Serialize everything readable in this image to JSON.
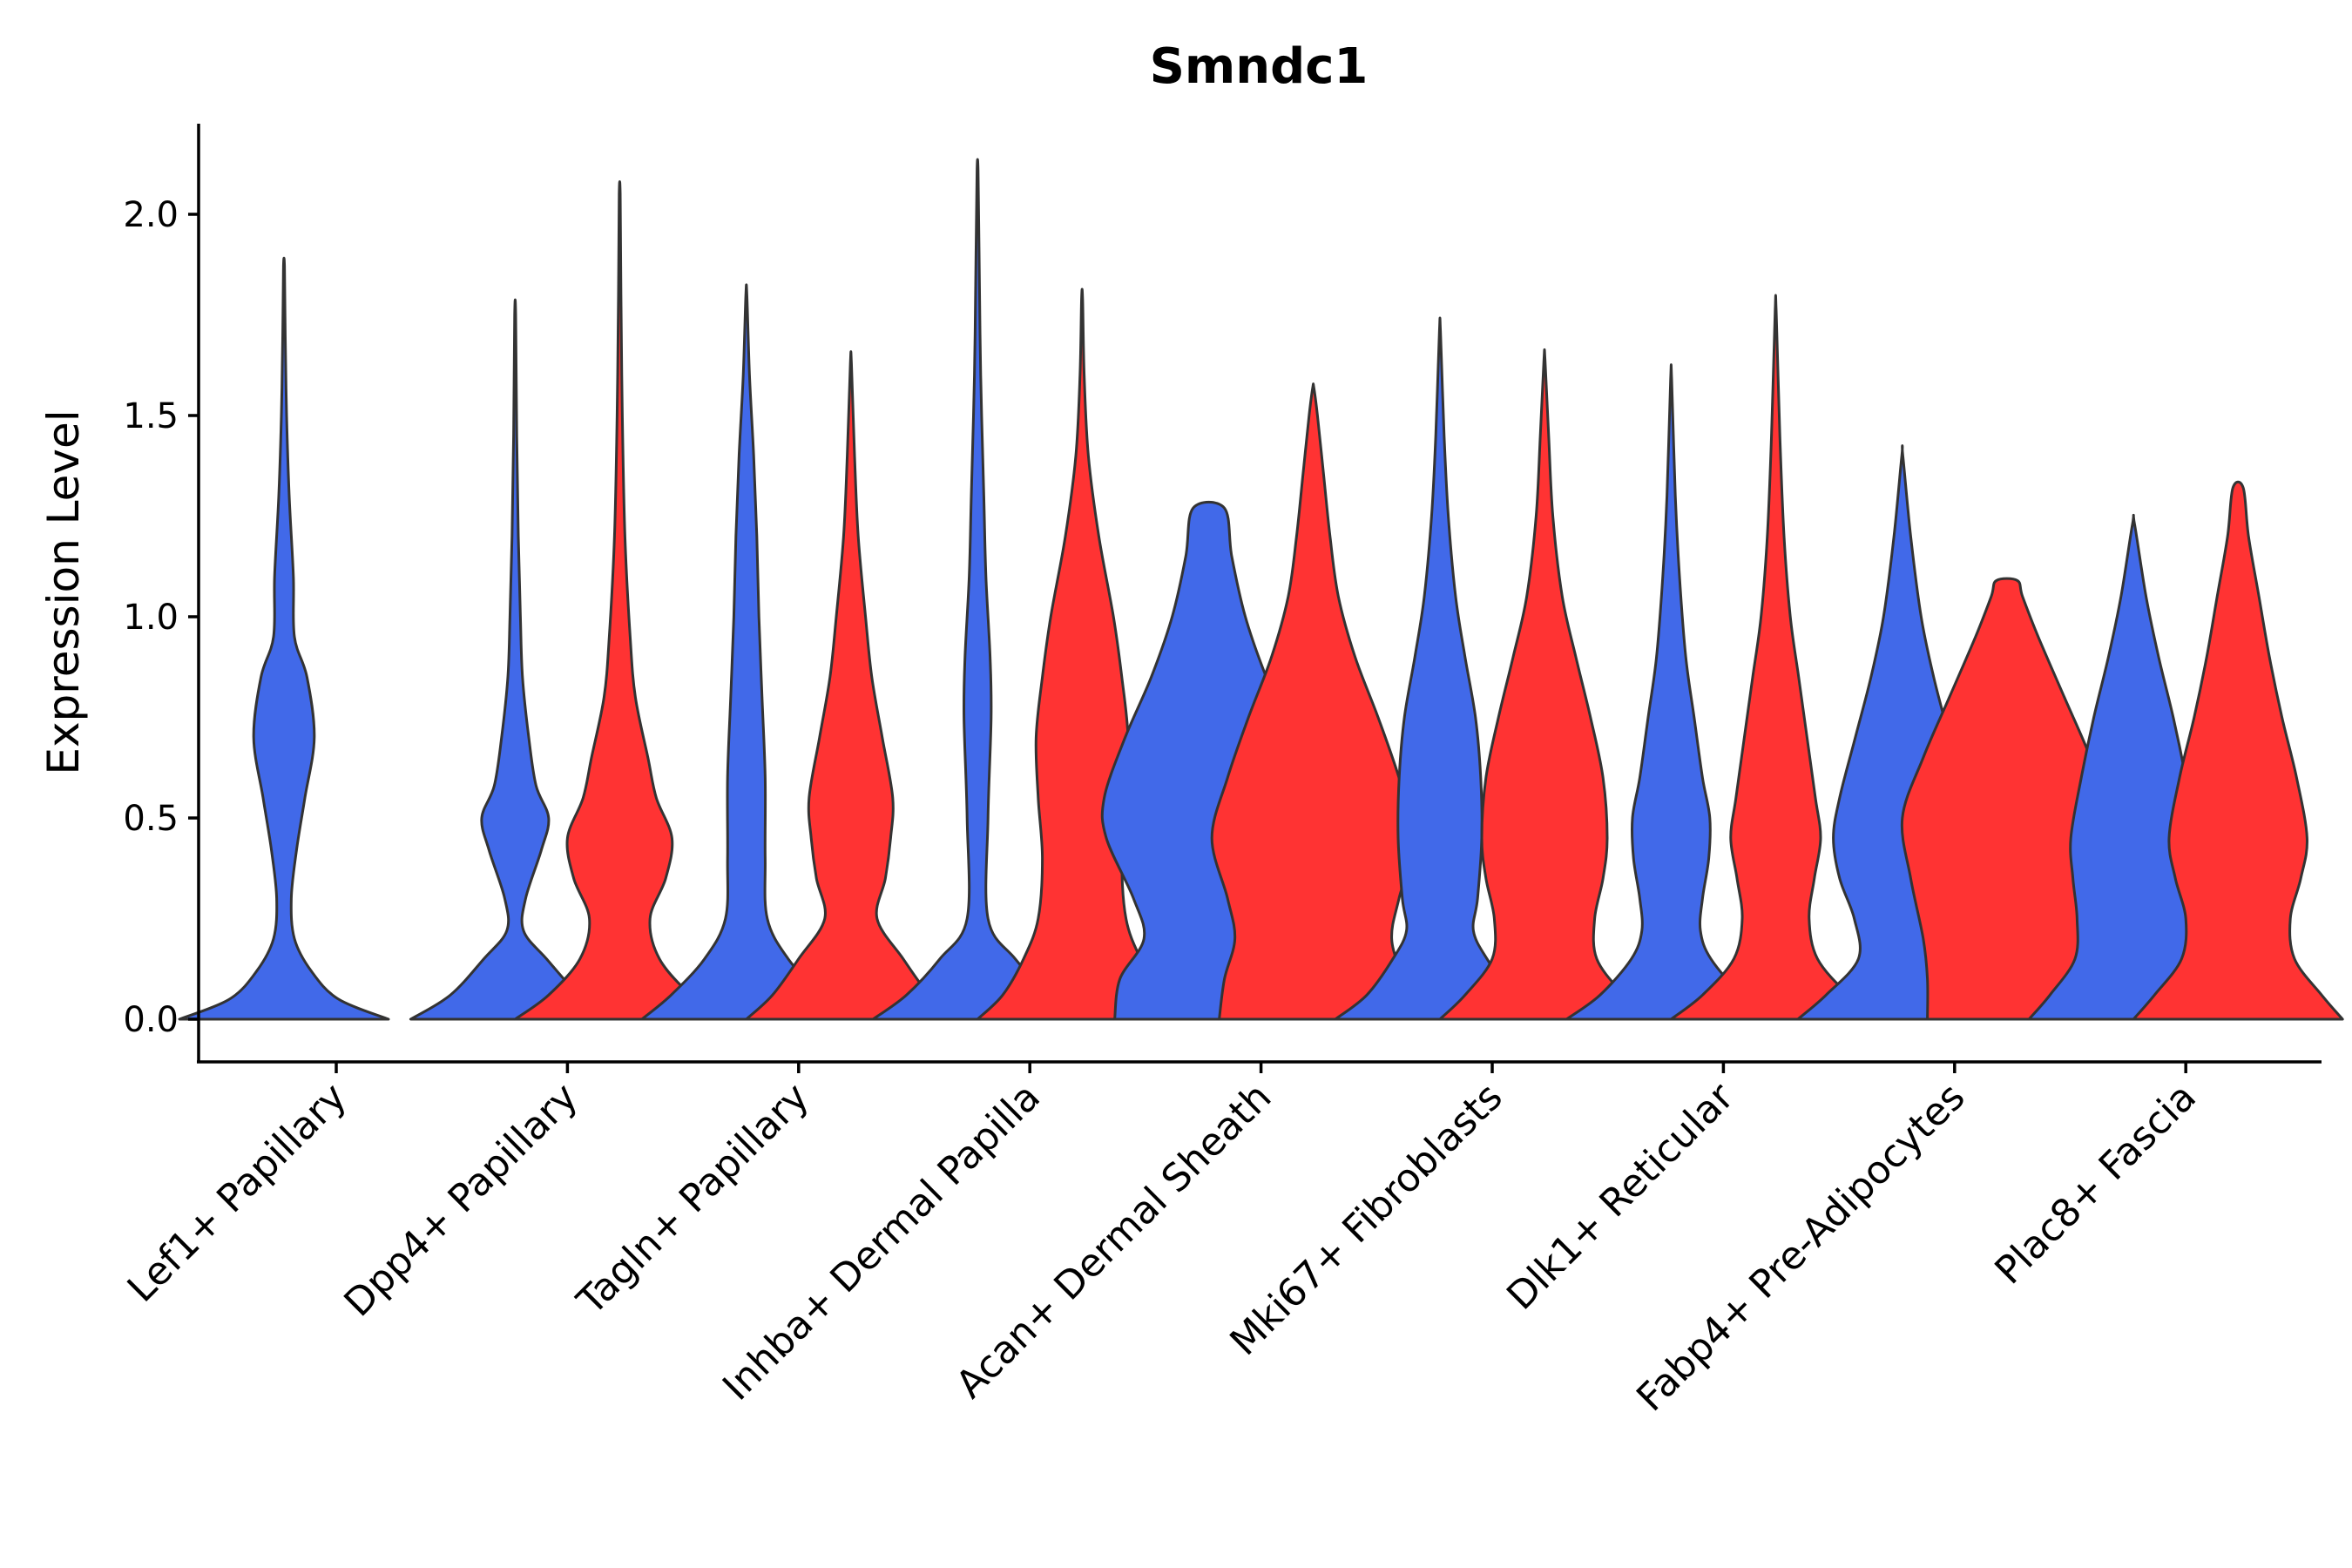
{
  "chart_data": {
    "type": "violin",
    "title": "Smndc1",
    "ylabel": "Expression Level",
    "xlabel": "",
    "ylim": [
      -0.1,
      2.2
    ],
    "yticks": [
      0.0,
      0.5,
      1.0,
      1.5,
      2.0
    ],
    "ytick_labels": [
      "0.0",
      "0.5",
      "1.0",
      "1.5",
      "2.0"
    ],
    "colors": {
      "blue": "#4169E9",
      "red": "#FF3333",
      "outline": "#333333"
    },
    "categories": [
      "Lef1+ Papillary",
      "Dpp4+ Papillary",
      "Tagln+ Papillary",
      "Inhba+ Dermal Papilla",
      "Acan+ Dermal Sheath",
      "Mki67+ Fibroblasts",
      "Dlk1+ Reticular",
      "Fabp4+ Pre-Adipocytes",
      "Plac8+ Fascia"
    ],
    "violins": [
      {
        "category": 0,
        "series": "blue",
        "max": 1.87,
        "profile": [
          [
            0,
            1
          ],
          [
            0.05,
            0.52
          ],
          [
            0.12,
            0.26
          ],
          [
            0.2,
            0.1
          ],
          [
            0.3,
            0.07
          ],
          [
            0.42,
            0.12
          ],
          [
            0.55,
            0.2
          ],
          [
            0.7,
            0.29
          ],
          [
            0.85,
            0.22
          ],
          [
            0.95,
            0.1
          ],
          [
            1.1,
            0.09
          ],
          [
            1.3,
            0.05
          ],
          [
            1.5,
            0.025
          ],
          [
            1.7,
            0.012
          ],
          [
            1.87,
            0.005
          ]
        ]
      },
      {
        "category": 1,
        "series": "blue",
        "max": 1.75,
        "profile": [
          [
            0,
            1
          ],
          [
            0.06,
            0.62
          ],
          [
            0.15,
            0.3
          ],
          [
            0.22,
            0.08
          ],
          [
            0.3,
            0.1
          ],
          [
            0.42,
            0.25
          ],
          [
            0.5,
            0.32
          ],
          [
            0.58,
            0.2
          ],
          [
            0.7,
            0.13
          ],
          [
            0.85,
            0.07
          ],
          [
            1.0,
            0.05
          ],
          [
            1.2,
            0.03
          ],
          [
            1.45,
            0.015
          ],
          [
            1.75,
            0.005
          ]
        ]
      },
      {
        "category": 1,
        "series": "red",
        "max": 2.05,
        "profile": [
          [
            0,
            1
          ],
          [
            0.06,
            0.68
          ],
          [
            0.15,
            0.38
          ],
          [
            0.25,
            0.29
          ],
          [
            0.35,
            0.44
          ],
          [
            0.45,
            0.5
          ],
          [
            0.55,
            0.35
          ],
          [
            0.65,
            0.27
          ],
          [
            0.8,
            0.15
          ],
          [
            0.95,
            0.1
          ],
          [
            1.2,
            0.05
          ],
          [
            1.5,
            0.025
          ],
          [
            1.8,
            0.012
          ],
          [
            2.05,
            0.005
          ]
        ]
      },
      {
        "category": 2,
        "series": "blue",
        "max": 1.8,
        "profile": [
          [
            0,
            1
          ],
          [
            0.06,
            0.72
          ],
          [
            0.15,
            0.4
          ],
          [
            0.25,
            0.2
          ],
          [
            0.4,
            0.18
          ],
          [
            0.6,
            0.18
          ],
          [
            0.8,
            0.15
          ],
          [
            1.0,
            0.12
          ],
          [
            1.2,
            0.1
          ],
          [
            1.4,
            0.07
          ],
          [
            1.6,
            0.03
          ],
          [
            1.8,
            0.005
          ]
        ]
      },
      {
        "category": 2,
        "series": "red",
        "max": 1.63,
        "profile": [
          [
            0,
            1
          ],
          [
            0.06,
            0.75
          ],
          [
            0.15,
            0.5
          ],
          [
            0.25,
            0.25
          ],
          [
            0.35,
            0.33
          ],
          [
            0.45,
            0.38
          ],
          [
            0.55,
            0.4
          ],
          [
            0.7,
            0.3
          ],
          [
            0.85,
            0.2
          ],
          [
            1.0,
            0.14
          ],
          [
            1.2,
            0.07
          ],
          [
            1.4,
            0.035
          ],
          [
            1.63,
            0.005
          ]
        ]
      },
      {
        "category": 3,
        "series": "blue",
        "max": 2.11,
        "profile": [
          [
            0,
            1
          ],
          [
            0.06,
            0.68
          ],
          [
            0.15,
            0.36
          ],
          [
            0.25,
            0.1
          ],
          [
            0.5,
            0.1
          ],
          [
            0.75,
            0.13
          ],
          [
            0.9,
            0.12
          ],
          [
            1.1,
            0.08
          ],
          [
            1.3,
            0.06
          ],
          [
            1.6,
            0.03
          ],
          [
            1.9,
            0.015
          ],
          [
            2.11,
            0.005
          ]
        ]
      },
      {
        "category": 3,
        "series": "red",
        "max": 1.79,
        "profile": [
          [
            0,
            1
          ],
          [
            0.06,
            0.76
          ],
          [
            0.15,
            0.56
          ],
          [
            0.25,
            0.42
          ],
          [
            0.4,
            0.38
          ],
          [
            0.55,
            0.42
          ],
          [
            0.7,
            0.44
          ],
          [
            0.85,
            0.38
          ],
          [
            1.0,
            0.3
          ],
          [
            1.2,
            0.16
          ],
          [
            1.4,
            0.06
          ],
          [
            1.6,
            0.02
          ],
          [
            1.79,
            0.005
          ]
        ]
      },
      {
        "category": 4,
        "series": "blue",
        "max": 1.27,
        "profile": [
          [
            0,
            0.9
          ],
          [
            0.1,
            0.85
          ],
          [
            0.2,
            0.62
          ],
          [
            0.3,
            0.72
          ],
          [
            0.45,
            0.98
          ],
          [
            0.55,
            1.0
          ],
          [
            0.7,
            0.8
          ],
          [
            0.85,
            0.55
          ],
          [
            1.0,
            0.35
          ],
          [
            1.15,
            0.22
          ],
          [
            1.27,
            0.15
          ]
        ]
      },
      {
        "category": 4,
        "series": "red",
        "max": 1.57,
        "profile": [
          [
            0,
            0.9
          ],
          [
            0.1,
            0.85
          ],
          [
            0.2,
            0.75
          ],
          [
            0.3,
            0.82
          ],
          [
            0.45,
            0.97
          ],
          [
            0.6,
            0.82
          ],
          [
            0.75,
            0.62
          ],
          [
            0.9,
            0.4
          ],
          [
            1.05,
            0.24
          ],
          [
            1.2,
            0.16
          ],
          [
            1.35,
            0.1
          ],
          [
            1.5,
            0.04
          ],
          [
            1.57,
            0.005
          ]
        ]
      },
      {
        "category": 5,
        "series": "blue",
        "max": 1.71,
        "profile": [
          [
            0,
            1
          ],
          [
            0.06,
            0.7
          ],
          [
            0.15,
            0.45
          ],
          [
            0.22,
            0.32
          ],
          [
            0.3,
            0.36
          ],
          [
            0.45,
            0.4
          ],
          [
            0.6,
            0.39
          ],
          [
            0.75,
            0.34
          ],
          [
            0.9,
            0.24
          ],
          [
            1.05,
            0.15
          ],
          [
            1.25,
            0.08
          ],
          [
            1.45,
            0.04
          ],
          [
            1.71,
            0.005
          ]
        ]
      },
      {
        "category": 5,
        "series": "red",
        "max": 1.64,
        "profile": [
          [
            0,
            1
          ],
          [
            0.06,
            0.76
          ],
          [
            0.15,
            0.5
          ],
          [
            0.25,
            0.48
          ],
          [
            0.35,
            0.56
          ],
          [
            0.45,
            0.6
          ],
          [
            0.6,
            0.56
          ],
          [
            0.75,
            0.44
          ],
          [
            0.9,
            0.3
          ],
          [
            1.05,
            0.17
          ],
          [
            1.25,
            0.08
          ],
          [
            1.45,
            0.04
          ],
          [
            1.64,
            0.005
          ]
        ]
      },
      {
        "category": 6,
        "series": "blue",
        "max": 1.59,
        "profile": [
          [
            0,
            1
          ],
          [
            0.06,
            0.68
          ],
          [
            0.15,
            0.38
          ],
          [
            0.22,
            0.28
          ],
          [
            0.3,
            0.3
          ],
          [
            0.4,
            0.36
          ],
          [
            0.5,
            0.37
          ],
          [
            0.6,
            0.3
          ],
          [
            0.75,
            0.22
          ],
          [
            0.9,
            0.14
          ],
          [
            1.1,
            0.08
          ],
          [
            1.3,
            0.04
          ],
          [
            1.59,
            0.005
          ]
        ]
      },
      {
        "category": 6,
        "series": "red",
        "max": 1.76,
        "profile": [
          [
            0,
            1
          ],
          [
            0.06,
            0.7
          ],
          [
            0.15,
            0.4
          ],
          [
            0.25,
            0.32
          ],
          [
            0.35,
            0.37
          ],
          [
            0.45,
            0.43
          ],
          [
            0.55,
            0.38
          ],
          [
            0.7,
            0.3
          ],
          [
            0.85,
            0.22
          ],
          [
            1.0,
            0.14
          ],
          [
            1.2,
            0.08
          ],
          [
            1.45,
            0.04
          ],
          [
            1.76,
            0.005
          ]
        ]
      },
      {
        "category": 7,
        "series": "blue",
        "max": 1.4,
        "profile": [
          [
            0,
            1
          ],
          [
            0.06,
            0.73
          ],
          [
            0.15,
            0.42
          ],
          [
            0.25,
            0.46
          ],
          [
            0.35,
            0.6
          ],
          [
            0.45,
            0.66
          ],
          [
            0.55,
            0.6
          ],
          [
            0.7,
            0.45
          ],
          [
            0.85,
            0.3
          ],
          [
            1.0,
            0.18
          ],
          [
            1.2,
            0.08
          ],
          [
            1.4,
            0.005
          ]
        ]
      },
      {
        "category": 7,
        "series": "red",
        "max": 1.09,
        "profile": [
          [
            0,
            0.76
          ],
          [
            0.1,
            0.76
          ],
          [
            0.2,
            0.8
          ],
          [
            0.35,
            0.92
          ],
          [
            0.5,
            1.0
          ],
          [
            0.65,
            0.8
          ],
          [
            0.8,
            0.55
          ],
          [
            0.95,
            0.3
          ],
          [
            1.05,
            0.15
          ],
          [
            1.09,
            0.1
          ]
        ]
      },
      {
        "category": 8,
        "series": "blue",
        "max": 1.23,
        "profile": [
          [
            0,
            1
          ],
          [
            0.06,
            0.8
          ],
          [
            0.15,
            0.56
          ],
          [
            0.25,
            0.54
          ],
          [
            0.35,
            0.58
          ],
          [
            0.45,
            0.6
          ],
          [
            0.6,
            0.5
          ],
          [
            0.75,
            0.38
          ],
          [
            0.9,
            0.24
          ],
          [
            1.05,
            0.12
          ],
          [
            1.23,
            0.01
          ]
        ]
      },
      {
        "category": 8,
        "series": "red",
        "max": 1.32,
        "profile": [
          [
            0,
            1
          ],
          [
            0.06,
            0.8
          ],
          [
            0.15,
            0.54
          ],
          [
            0.25,
            0.5
          ],
          [
            0.35,
            0.6
          ],
          [
            0.45,
            0.66
          ],
          [
            0.6,
            0.56
          ],
          [
            0.75,
            0.42
          ],
          [
            0.9,
            0.3
          ],
          [
            1.05,
            0.2
          ],
          [
            1.2,
            0.1
          ],
          [
            1.32,
            0.05
          ]
        ]
      }
    ]
  }
}
